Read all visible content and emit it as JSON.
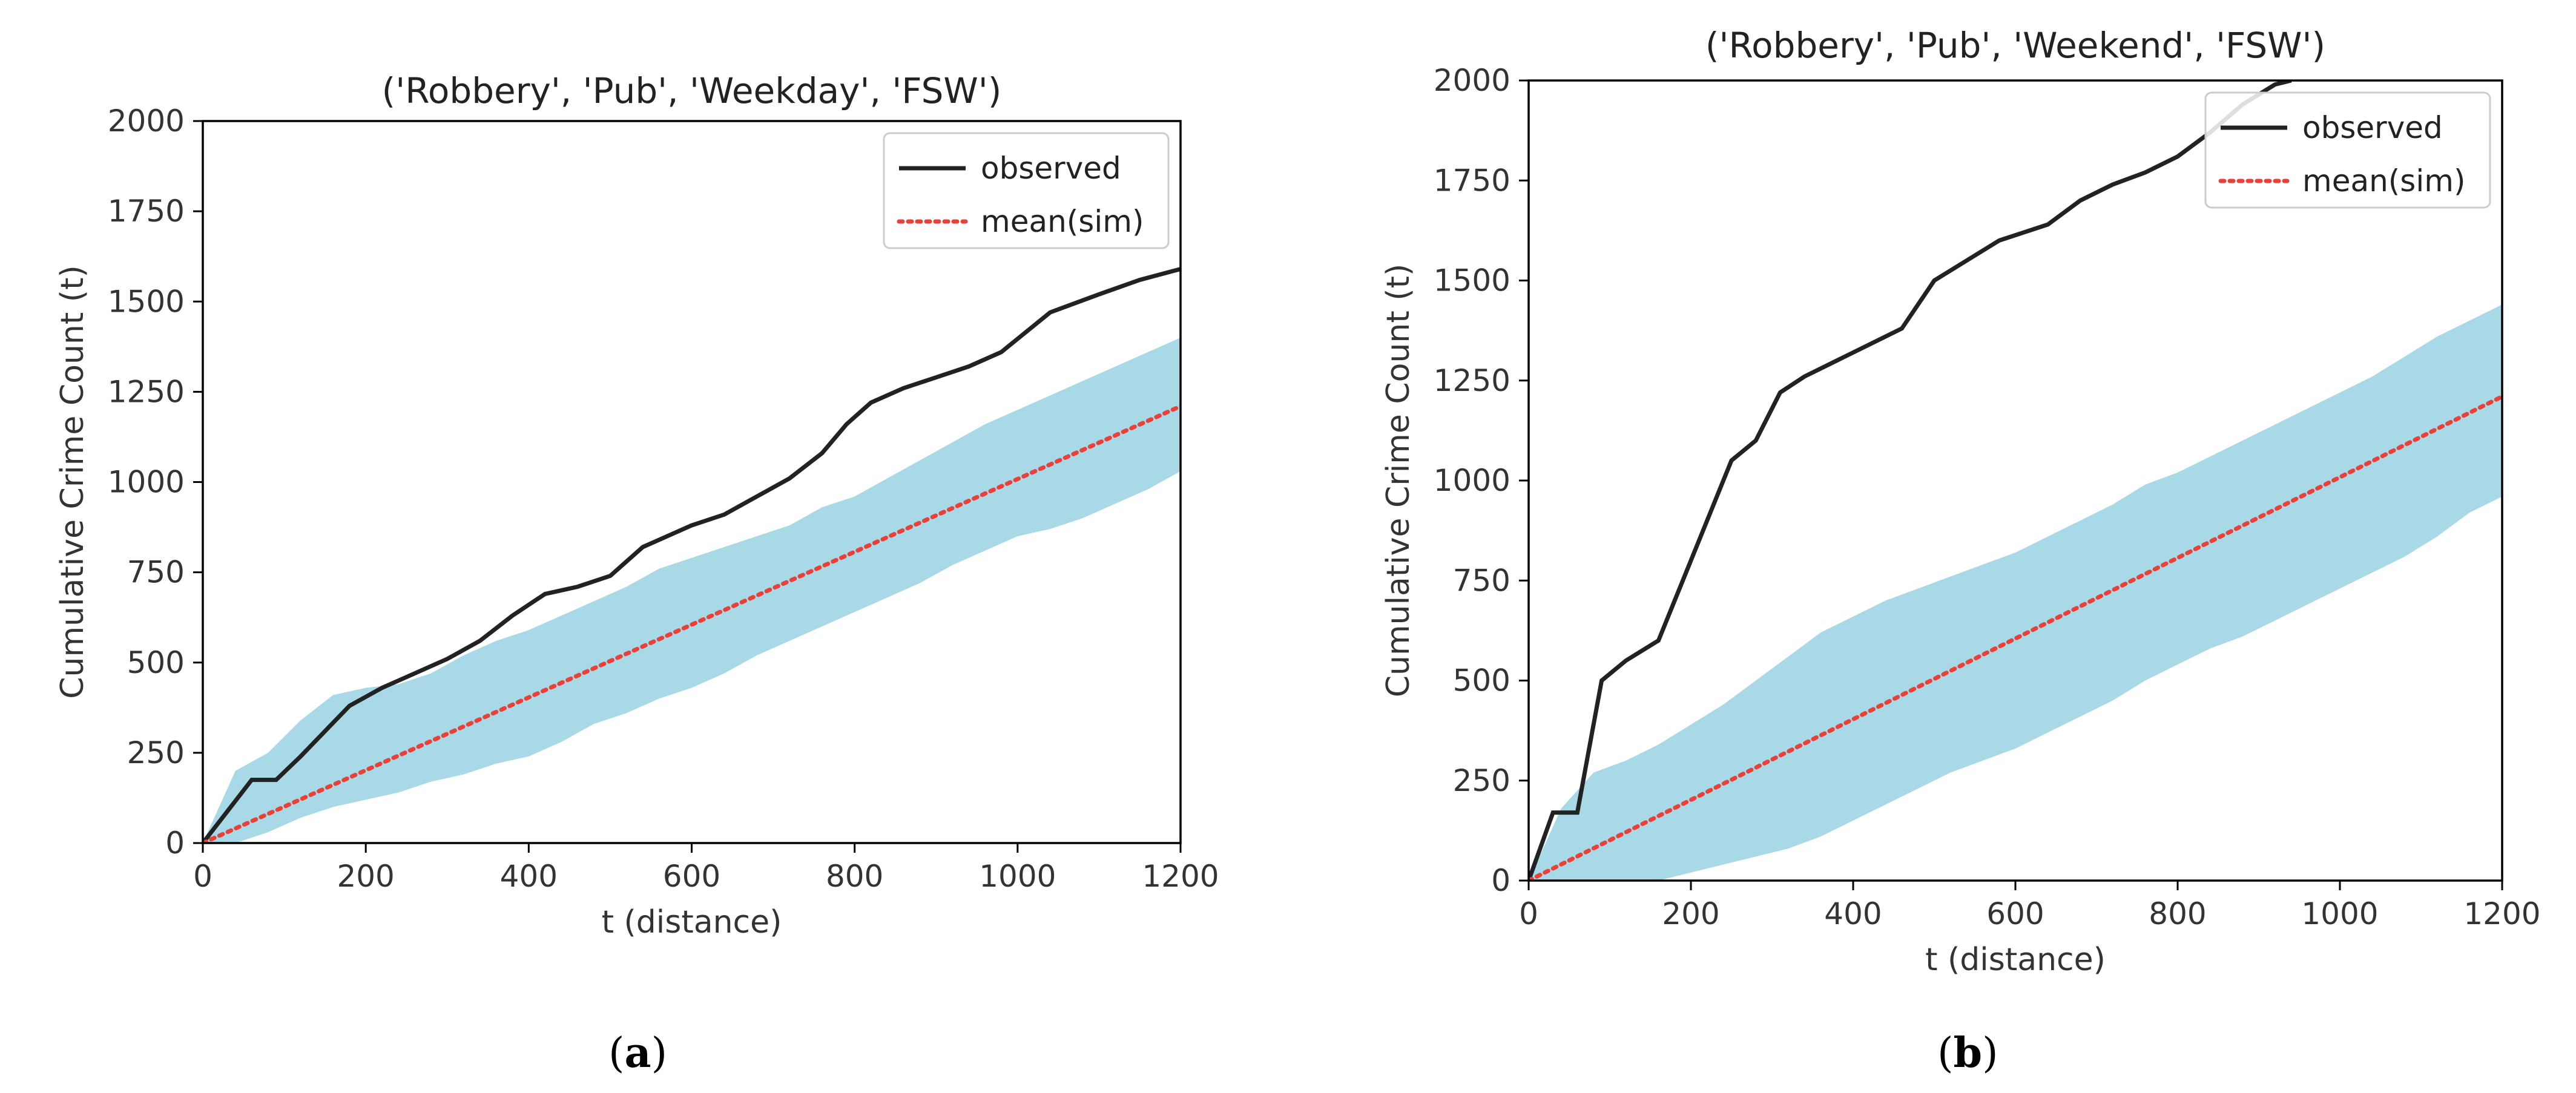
{
  "figure": {
    "captions": [
      "a",
      "b"
    ]
  },
  "colors": {
    "observed": "#222222",
    "mean_sim": "#e8413a",
    "band": "#a9d8e6",
    "axis": "#000000"
  },
  "chart_data": [
    {
      "type": "line",
      "title": "('Robbery', 'Pub', 'Weekday', 'FSW')",
      "xlabel": "t (distance)",
      "ylabel": "Cumulative Crime Count (t)",
      "xlim": [
        0,
        1200
      ],
      "ylim": [
        0,
        2000
      ],
      "xticks": [
        0,
        200,
        400,
        600,
        800,
        1000,
        1200
      ],
      "yticks": [
        0,
        250,
        500,
        750,
        1000,
        1250,
        1500,
        1750,
        2000
      ],
      "legend": {
        "placement": "top-right",
        "entries": [
          "observed",
          "mean(sim)"
        ]
      },
      "series": [
        {
          "name": "observed",
          "style": "solid",
          "x": [
            0,
            60,
            90,
            120,
            180,
            220,
            260,
            300,
            340,
            380,
            420,
            460,
            500,
            540,
            600,
            640,
            680,
            720,
            760,
            790,
            820,
            860,
            900,
            940,
            980,
            1040,
            1100,
            1150,
            1200
          ],
          "y": [
            0,
            175,
            175,
            240,
            380,
            430,
            470,
            510,
            560,
            630,
            690,
            710,
            740,
            820,
            880,
            910,
            960,
            1010,
            1080,
            1160,
            1220,
            1260,
            1290,
            1320,
            1360,
            1470,
            1520,
            1560,
            1590
          ]
        },
        {
          "name": "mean(sim)",
          "style": "dotted",
          "x": [
            0,
            1200
          ],
          "y": [
            0,
            1210
          ]
        }
      ],
      "band": {
        "x": [
          0,
          40,
          80,
          120,
          160,
          200,
          240,
          280,
          320,
          360,
          400,
          440,
          480,
          520,
          560,
          600,
          640,
          680,
          720,
          760,
          800,
          840,
          880,
          920,
          960,
          1000,
          1040,
          1080,
          1120,
          1160,
          1200
        ],
        "upper": [
          0,
          200,
          250,
          340,
          410,
          430,
          440,
          470,
          520,
          560,
          590,
          630,
          670,
          710,
          760,
          790,
          820,
          850,
          880,
          930,
          960,
          1010,
          1060,
          1110,
          1160,
          1200,
          1240,
          1280,
          1320,
          1360,
          1400
        ],
        "lower": [
          0,
          0,
          30,
          70,
          100,
          120,
          140,
          170,
          190,
          220,
          240,
          280,
          330,
          360,
          400,
          430,
          470,
          520,
          560,
          600,
          640,
          680,
          720,
          770,
          810,
          850,
          870,
          900,
          940,
          980,
          1030
        ]
      }
    },
    {
      "type": "line",
      "title": "('Robbery', 'Pub', 'Weekend', 'FSW')",
      "xlabel": "t (distance)",
      "ylabel": "Cumulative Crime Count (t)",
      "xlim": [
        0,
        1200
      ],
      "ylim": [
        0,
        2000
      ],
      "xticks": [
        0,
        200,
        400,
        600,
        800,
        1000,
        1200
      ],
      "yticks": [
        0,
        250,
        500,
        750,
        1000,
        1250,
        1500,
        1750,
        2000
      ],
      "legend": {
        "placement": "top-right",
        "entries": [
          "observed",
          "mean(sim)"
        ]
      },
      "series": [
        {
          "name": "observed",
          "style": "solid",
          "x": [
            0,
            30,
            60,
            90,
            120,
            160,
            200,
            220,
            250,
            280,
            310,
            340,
            380,
            420,
            460,
            500,
            540,
            580,
            610,
            640,
            680,
            720,
            760,
            800,
            840,
            880,
            920,
            940
          ],
          "y": [
            0,
            170,
            170,
            500,
            550,
            600,
            800,
            900,
            1050,
            1100,
            1220,
            1260,
            1300,
            1340,
            1380,
            1500,
            1550,
            1600,
            1620,
            1640,
            1700,
            1740,
            1770,
            1810,
            1870,
            1940,
            1990,
            2000
          ]
        },
        {
          "name": "mean(sim)",
          "style": "dotted",
          "x": [
            0,
            1200
          ],
          "y": [
            0,
            1210
          ]
        }
      ],
      "band": {
        "x": [
          0,
          40,
          80,
          120,
          160,
          200,
          240,
          280,
          320,
          360,
          400,
          440,
          480,
          520,
          560,
          600,
          640,
          680,
          720,
          760,
          800,
          840,
          880,
          920,
          960,
          1000,
          1040,
          1080,
          1120,
          1160,
          1200
        ],
        "upper": [
          0,
          180,
          270,
          300,
          340,
          390,
          440,
          500,
          560,
          620,
          660,
          700,
          730,
          760,
          790,
          820,
          860,
          900,
          940,
          990,
          1020,
          1060,
          1100,
          1140,
          1180,
          1220,
          1260,
          1310,
          1360,
          1400,
          1440
        ],
        "lower": [
          0,
          0,
          0,
          0,
          0,
          20,
          40,
          60,
          80,
          110,
          150,
          190,
          230,
          270,
          300,
          330,
          370,
          410,
          450,
          500,
          540,
          580,
          610,
          650,
          690,
          730,
          770,
          810,
          860,
          920,
          960
        ]
      }
    }
  ]
}
